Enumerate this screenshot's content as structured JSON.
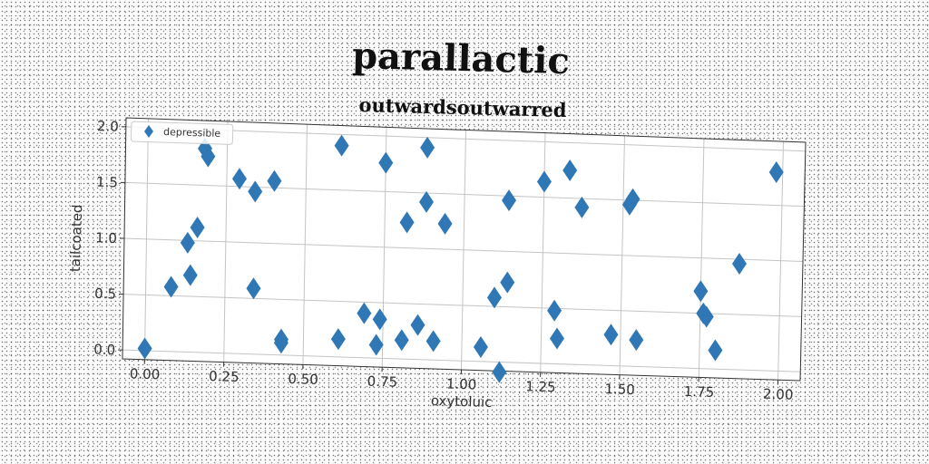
{
  "chart_data": {
    "type": "scatter",
    "title": "parallactic",
    "subtitle": "outwardsoutwarred",
    "xlabel": "oxytoluic",
    "ylabel": "tailcoated",
    "xlim": [
      -0.07,
      2.07
    ],
    "ylim": [
      -0.08,
      2.08
    ],
    "xticks": [
      "0.00",
      "0.25",
      "0.50",
      "0.75",
      "1.00",
      "1.25",
      "1.50",
      "1.75",
      "2.00"
    ],
    "yticks": [
      "0.0",
      "0.5",
      "1.0",
      "1.5",
      "2.0"
    ],
    "grid": true,
    "legend_position": "top-left",
    "marker": "diamond",
    "series": [
      {
        "name": "depressible",
        "color": "#2f78b5",
        "points": [
          [
            0.0,
            0.02
          ],
          [
            0.08,
            0.58
          ],
          [
            0.13,
            0.98
          ],
          [
            0.14,
            0.69
          ],
          [
            0.16,
            1.12
          ],
          [
            0.18,
            1.83
          ],
          [
            0.19,
            1.76
          ],
          [
            0.29,
            1.57
          ],
          [
            0.34,
            1.46
          ],
          [
            0.34,
            0.59
          ],
          [
            0.4,
            1.56
          ],
          [
            0.43,
            0.14
          ],
          [
            0.43,
            0.11
          ],
          [
            0.61,
            1.9
          ],
          [
            0.61,
            0.16
          ],
          [
            0.69,
            0.4
          ],
          [
            0.73,
            0.12
          ],
          [
            0.74,
            0.35
          ],
          [
            0.75,
            1.76
          ],
          [
            0.81,
            0.17
          ],
          [
            0.82,
            1.23
          ],
          [
            0.86,
            0.31
          ],
          [
            0.88,
            1.42
          ],
          [
            0.88,
            1.91
          ],
          [
            0.91,
            0.17
          ],
          [
            0.94,
            1.23
          ],
          [
            1.06,
            0.13
          ],
          [
            1.1,
            0.58
          ],
          [
            1.12,
            -0.09
          ],
          [
            1.14,
            1.46
          ],
          [
            1.14,
            0.72
          ],
          [
            1.25,
            1.64
          ],
          [
            1.29,
            0.48
          ],
          [
            1.3,
            0.23
          ],
          [
            1.33,
            1.75
          ],
          [
            1.37,
            1.42
          ],
          [
            1.47,
            0.28
          ],
          [
            1.52,
            1.46
          ],
          [
            1.53,
            1.51
          ],
          [
            1.55,
            0.24
          ],
          [
            1.75,
            0.7
          ],
          [
            1.76,
            0.5
          ],
          [
            1.77,
            0.47
          ],
          [
            1.8,
            0.17
          ],
          [
            1.87,
            0.96
          ],
          [
            1.98,
            1.8
          ]
        ]
      }
    ]
  }
}
